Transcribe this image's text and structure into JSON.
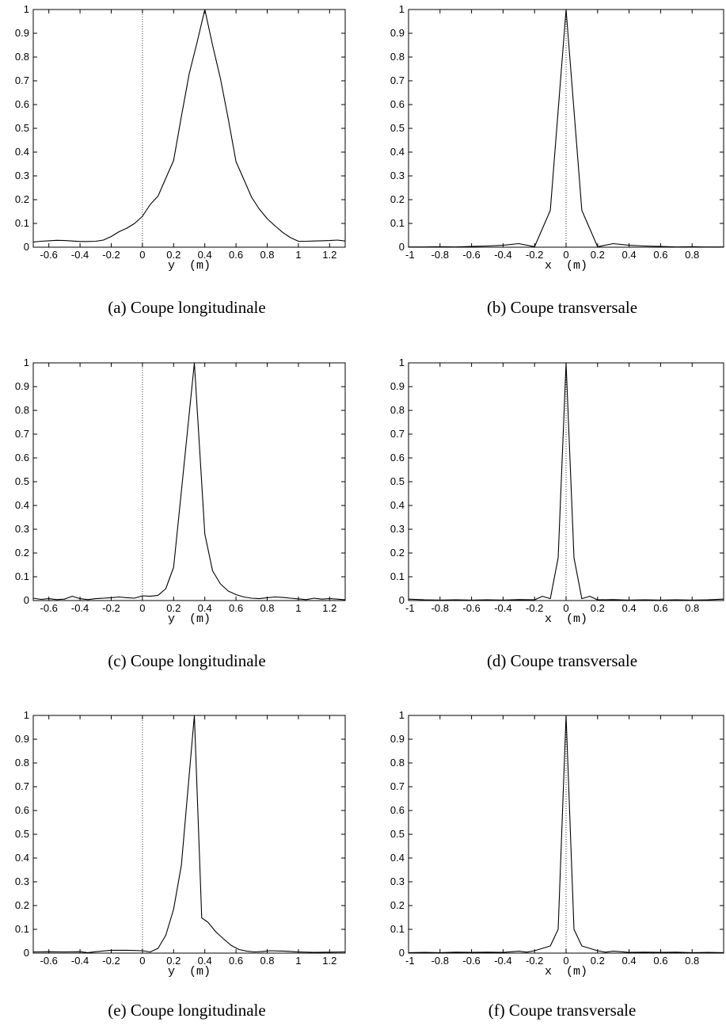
{
  "chart_data": [
    {
      "type": "line",
      "caption": "(a) Coupe longitudinale",
      "xlabel": "y  (m)",
      "xlim": [
        -0.7,
        1.3
      ],
      "ylim": [
        0,
        1
      ],
      "xticks": [
        -0.6,
        -0.4,
        -0.2,
        0,
        0.2,
        0.4,
        0.6,
        0.8,
        1,
        1.2
      ],
      "xtick_labels": [
        "-0.6",
        "-0.4",
        "-0.2",
        "0",
        "0.2",
        "0.4",
        "0.6",
        "0.8",
        "1",
        "1.2"
      ],
      "yticks": [
        0,
        0.1,
        0.2,
        0.3,
        0.4,
        0.5,
        0.6,
        0.7,
        0.8,
        0.9,
        1
      ],
      "ytick_labels": [
        "0",
        "0.1",
        "0.2",
        "0.3",
        "0.4",
        "0.5",
        "0.6",
        "0.7",
        "0.8",
        "0.9",
        "1"
      ],
      "ref_line_x": 0,
      "series": [
        {
          "x": [
            -0.7,
            -0.65,
            -0.6,
            -0.55,
            -0.5,
            -0.45,
            -0.4,
            -0.35,
            -0.3,
            -0.25,
            -0.2,
            -0.15,
            -0.1,
            -0.05,
            0,
            0.05,
            0.1,
            0.15,
            0.2,
            0.25,
            0.3,
            0.35,
            0.4,
            0.45,
            0.5,
            0.55,
            0.6,
            0.65,
            0.7,
            0.75,
            0.8,
            0.85,
            0.9,
            0.95,
            1.0,
            1.05,
            1.1,
            1.15,
            1.2,
            1.25,
            1.3
          ],
          "y": [
            0.022,
            0.025,
            0.027,
            0.029,
            0.028,
            0.026,
            0.024,
            0.024,
            0.025,
            0.03,
            0.045,
            0.065,
            0.08,
            0.1,
            0.13,
            0.18,
            0.215,
            0.29,
            0.365,
            0.55,
            0.73,
            0.86,
            1.0,
            0.85,
            0.71,
            0.54,
            0.36,
            0.285,
            0.21,
            0.16,
            0.12,
            0.09,
            0.062,
            0.04,
            0.025,
            0.025,
            0.026,
            0.027,
            0.028,
            0.03,
            0.026
          ]
        }
      ]
    },
    {
      "type": "line",
      "caption": "(b) Coupe transversale",
      "xlabel": "x  (m)",
      "xlim": [
        -1,
        1
      ],
      "ylim": [
        0,
        1
      ],
      "xticks": [
        -1,
        -0.8,
        -0.6,
        -0.4,
        -0.2,
        0,
        0.2,
        0.4,
        0.6,
        0.8
      ],
      "xtick_labels": [
        "-1",
        "-0.8",
        "-0.6",
        "-0.4",
        "-0.2",
        "0",
        "0.2",
        "0.4",
        "0.6",
        "0.8"
      ],
      "yticks": [
        0,
        0.1,
        0.2,
        0.3,
        0.4,
        0.5,
        0.6,
        0.7,
        0.8,
        0.9,
        1
      ],
      "ytick_labels": [
        "0",
        "0.1",
        "0.2",
        "0.3",
        "0.4",
        "0.5",
        "0.6",
        "0.7",
        "0.8",
        "0.9",
        "1"
      ],
      "ref_line_x": 0,
      "series": [
        {
          "x": [
            -1,
            -0.9,
            -0.8,
            -0.7,
            -0.6,
            -0.5,
            -0.4,
            -0.3,
            -0.2,
            -0.1,
            0,
            0.1,
            0.2,
            0.3,
            0.4,
            0.5,
            0.6,
            0.7,
            0.8,
            0.9,
            1
          ],
          "y": [
            0.001,
            0.001,
            0.002,
            0.001,
            0.003,
            0.005,
            0.008,
            0.015,
            0.002,
            0.155,
            1.0,
            0.155,
            0.002,
            0.015,
            0.008,
            0.005,
            0.003,
            0.001,
            0.002,
            0.001,
            0.001
          ]
        }
      ]
    },
    {
      "type": "line",
      "caption": "(c) Coupe longitudinale",
      "xlabel": "y  (m)",
      "xlim": [
        -0.7,
        1.3
      ],
      "ylim": [
        0,
        1
      ],
      "xticks": [
        -0.6,
        -0.4,
        -0.2,
        0,
        0.2,
        0.4,
        0.6,
        0.8,
        1,
        1.2
      ],
      "xtick_labels": [
        "-0.6",
        "-0.4",
        "-0.2",
        "0",
        "0.2",
        "0.4",
        "0.6",
        "0.8",
        "1",
        "1.2"
      ],
      "yticks": [
        0,
        0.1,
        0.2,
        0.3,
        0.4,
        0.5,
        0.6,
        0.7,
        0.8,
        0.9,
        1
      ],
      "ytick_labels": [
        "0",
        "0.1",
        "0.2",
        "0.3",
        "0.4",
        "0.5",
        "0.6",
        "0.7",
        "0.8",
        "0.9",
        "1"
      ],
      "ref_line_x": 0,
      "series": [
        {
          "x": [
            -0.7,
            -0.65,
            -0.6,
            -0.55,
            -0.5,
            -0.45,
            -0.4,
            -0.35,
            -0.3,
            -0.25,
            -0.2,
            -0.15,
            -0.1,
            -0.05,
            0,
            0.05,
            0.1,
            0.15,
            0.2,
            0.25,
            0.333,
            0.4,
            0.45,
            0.5,
            0.55,
            0.6,
            0.65,
            0.7,
            0.75,
            0.8,
            0.85,
            0.9,
            0.95,
            1.0,
            1.05,
            1.1,
            1.15,
            1.2,
            1.25,
            1.3
          ],
          "y": [
            0.01,
            0.005,
            0.008,
            0.004,
            0.006,
            0.018,
            0.008,
            0.004,
            0.008,
            0.01,
            0.012,
            0.015,
            0.012,
            0.01,
            0.02,
            0.018,
            0.022,
            0.05,
            0.14,
            0.46,
            1.0,
            0.28,
            0.125,
            0.07,
            0.04,
            0.025,
            0.015,
            0.01,
            0.008,
            0.012,
            0.015,
            0.013,
            0.01,
            0.007,
            0.004,
            0.01,
            0.006,
            0.008,
            0.006,
            0.003
          ]
        }
      ]
    },
    {
      "type": "line",
      "caption": "(d) Coupe transversale",
      "xlabel": "x  (m)",
      "xlim": [
        -1,
        1
      ],
      "ylim": [
        0,
        1
      ],
      "xticks": [
        -1,
        -0.8,
        -0.6,
        -0.4,
        -0.2,
        0,
        0.2,
        0.4,
        0.6,
        0.8
      ],
      "xtick_labels": [
        "-1",
        "-0.8",
        "-0.6",
        "-0.4",
        "-0.2",
        "0",
        "0.2",
        "0.4",
        "0.6",
        "0.8"
      ],
      "yticks": [
        0,
        0.1,
        0.2,
        0.3,
        0.4,
        0.5,
        0.6,
        0.7,
        0.8,
        0.9,
        1
      ],
      "ytick_labels": [
        "0",
        "0.1",
        "0.2",
        "0.3",
        "0.4",
        "0.5",
        "0.6",
        "0.7",
        "0.8",
        "0.9",
        "1"
      ],
      "ref_line_x": 0,
      "series": [
        {
          "x": [
            -1,
            -0.9,
            -0.8,
            -0.7,
            -0.6,
            -0.5,
            -0.4,
            -0.3,
            -0.2,
            -0.15,
            -0.1,
            -0.05,
            0,
            0.05,
            0.1,
            0.15,
            0.2,
            0.3,
            0.4,
            0.5,
            0.6,
            0.7,
            0.8,
            0.9,
            1
          ],
          "y": [
            0.006,
            0.003,
            0.002,
            0.003,
            0.002,
            0.003,
            0.002,
            0.004,
            0.003,
            0.018,
            0.008,
            0.18,
            1.0,
            0.18,
            0.008,
            0.018,
            0.003,
            0.004,
            0.002,
            0.003,
            0.002,
            0.003,
            0.002,
            0.003,
            0.006
          ]
        }
      ]
    },
    {
      "type": "line",
      "caption": "(e) Coupe longitudinale",
      "xlabel": "y  (m)",
      "xlim": [
        -0.7,
        1.3
      ],
      "ylim": [
        0,
        1
      ],
      "xticks": [
        -0.6,
        -0.4,
        -0.2,
        0,
        0.2,
        0.4,
        0.6,
        0.8,
        1,
        1.2
      ],
      "xtick_labels": [
        "-0.6",
        "-0.4",
        "-0.2",
        "0",
        "0.2",
        "0.4",
        "0.6",
        "0.8",
        "1",
        "1.2"
      ],
      "yticks": [
        0,
        0.1,
        0.2,
        0.3,
        0.4,
        0.5,
        0.6,
        0.7,
        0.8,
        0.9,
        1
      ],
      "ytick_labels": [
        "0",
        "0.1",
        "0.2",
        "0.3",
        "0.4",
        "0.5",
        "0.6",
        "0.7",
        "0.8",
        "0.9",
        "1"
      ],
      "ref_line_x": 0,
      "series": [
        {
          "x": [
            -0.7,
            -0.6,
            -0.5,
            -0.4,
            -0.35,
            -0.3,
            -0.25,
            -0.2,
            -0.15,
            -0.1,
            -0.05,
            0,
            0.05,
            0.1,
            0.15,
            0.2,
            0.25,
            0.333,
            0.38,
            0.42,
            0.47,
            0.52,
            0.57,
            0.62,
            0.67,
            0.72,
            0.77,
            0.82,
            0.87,
            0.92,
            0.97,
            1.0,
            1.1,
            1.2,
            1.3
          ],
          "y": [
            0.005,
            0.006,
            0.005,
            0.006,
            0.002,
            0.006,
            0.009,
            0.012,
            0.012,
            0.012,
            0.011,
            0.01,
            0.005,
            0.02,
            0.075,
            0.185,
            0.37,
            1.0,
            0.148,
            0.13,
            0.09,
            0.06,
            0.032,
            0.015,
            0.008,
            0.005,
            0.007,
            0.01,
            0.009,
            0.008,
            0.006,
            0.005,
            0.003,
            0.004,
            0.005
          ]
        }
      ]
    },
    {
      "type": "line",
      "caption": "(f) Coupe transversale",
      "xlabel": "x  (m)",
      "xlim": [
        -1,
        1
      ],
      "ylim": [
        0,
        1
      ],
      "xticks": [
        -1,
        -0.8,
        -0.6,
        -0.4,
        -0.2,
        0,
        0.2,
        0.4,
        0.6,
        0.8
      ],
      "xtick_labels": [
        "-1",
        "-0.8",
        "-0.6",
        "-0.4",
        "-0.2",
        "0",
        "0.2",
        "0.4",
        "0.6",
        "0.8"
      ],
      "yticks": [
        0,
        0.1,
        0.2,
        0.3,
        0.4,
        0.5,
        0.6,
        0.7,
        0.8,
        0.9,
        1
      ],
      "ytick_labels": [
        "0",
        "0.1",
        "0.2",
        "0.3",
        "0.4",
        "0.5",
        "0.6",
        "0.7",
        "0.8",
        "0.9",
        "1"
      ],
      "ref_line_x": 0,
      "series": [
        {
          "x": [
            -1,
            -0.9,
            -0.8,
            -0.7,
            -0.6,
            -0.5,
            -0.4,
            -0.3,
            -0.25,
            -0.2,
            -0.15,
            -0.1,
            -0.05,
            0,
            0.05,
            0.1,
            0.15,
            0.2,
            0.25,
            0.3,
            0.4,
            0.5,
            0.6,
            0.7,
            0.8,
            0.9,
            1
          ],
          "y": [
            0.002,
            0.003,
            0.002,
            0.004,
            0.003,
            0.004,
            0.003,
            0.008,
            0.004,
            0.01,
            0.02,
            0.03,
            0.1,
            1.0,
            0.1,
            0.03,
            0.02,
            0.01,
            0.004,
            0.008,
            0.003,
            0.004,
            0.003,
            0.004,
            0.002,
            0.003,
            0.002
          ]
        }
      ]
    }
  ]
}
